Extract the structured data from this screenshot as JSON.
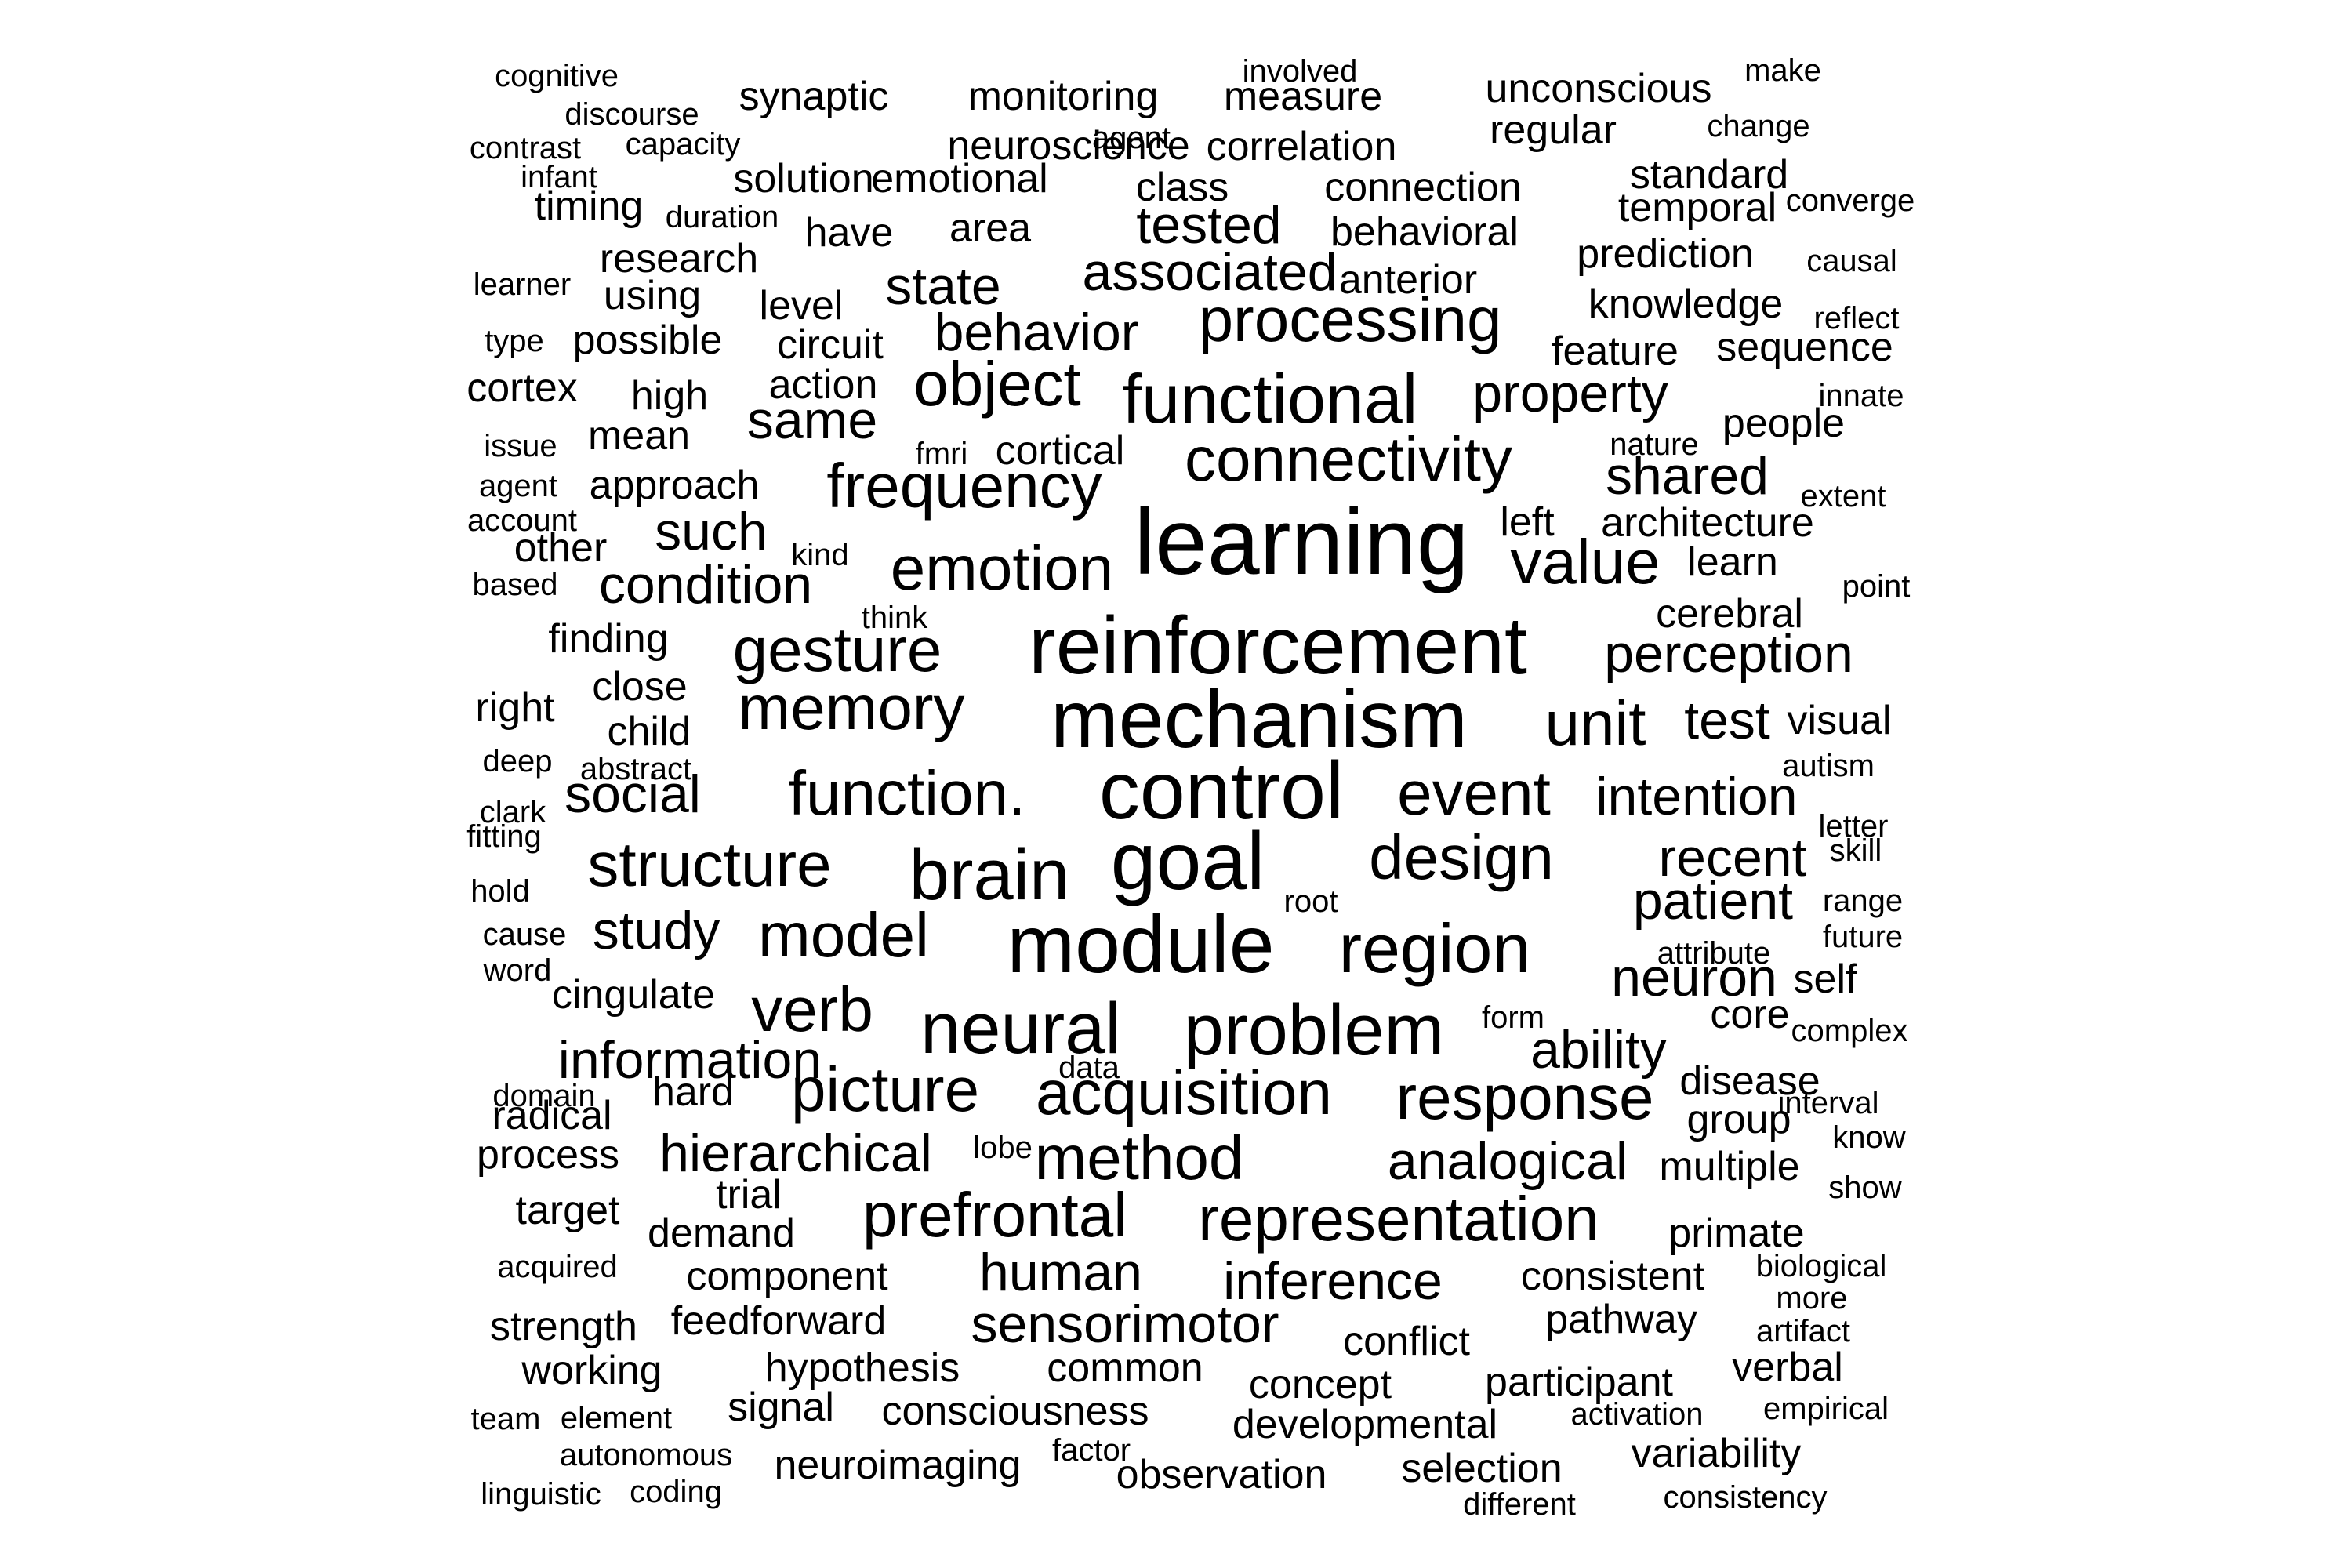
{
  "cloud": {
    "text_color": "#000000",
    "background_color": "#ffffff",
    "words": [
      "cognitive",
      "involved",
      "make",
      "discourse",
      "synaptic",
      "monitoring",
      "measure",
      "unconscious",
      "contrast",
      "capacity",
      "agent",
      "change",
      "neuroscience",
      "correlation",
      "regular",
      "infant",
      "solution",
      "emotional",
      "class",
      "connection",
      "standard",
      "timing",
      "duration",
      "temporal",
      "converge",
      "have",
      "area",
      "tested",
      "behavioral",
      "research",
      "prediction",
      "causal",
      "learner",
      "using",
      "state",
      "associated",
      "anterior",
      "level",
      "knowledge",
      "reflect",
      "type",
      "possible",
      "circuit",
      "behavior",
      "processing",
      "feature",
      "sequence",
      "cortex",
      "high",
      "action",
      "object",
      "functional",
      "property",
      "innate",
      "same",
      "issue",
      "mean",
      "fmri",
      "cortical",
      "nature",
      "people",
      "connectivity",
      "agent",
      "approach",
      "frequency",
      "shared",
      "extent",
      "account",
      "left",
      "architecture",
      "other",
      "such",
      "kind",
      "learning",
      "learn",
      "based",
      "condition",
      "emotion",
      "value",
      "point",
      "think",
      "cerebral",
      "finding",
      "gesture",
      "reinforcement",
      "perception",
      "close",
      "right",
      "memory",
      "mechanism",
      "unit",
      "test",
      "visual",
      "child",
      "deep",
      "abstract",
      "autism",
      "social",
      "function.",
      "control",
      "event",
      "intention",
      "clark",
      "letter",
      "fitting",
      "skill",
      "recent",
      "hold",
      "structure",
      "goal",
      "design",
      "brain",
      "root",
      "range",
      "patient",
      "cause",
      "study",
      "model",
      "future",
      "word",
      "attribute",
      "module",
      "region",
      "neuron",
      "self",
      "cingulate",
      "verb",
      "core",
      "form",
      "complex",
      "neural",
      "problem",
      "information",
      "ability",
      "disease",
      "domain",
      "data",
      "hard",
      "interval",
      "picture",
      "acquisition",
      "response",
      "radical",
      "group",
      "know",
      "lobe",
      "process",
      "hierarchical",
      "method",
      "analogical",
      "multiple",
      "trial",
      "target",
      "show",
      "prefrontal",
      "representation",
      "demand",
      "primate",
      "acquired",
      "component",
      "biological",
      "human",
      "inference",
      "consistent",
      "more",
      "sensorimotor",
      "strength",
      "feedforward",
      "pathway",
      "artifact",
      "conflict",
      "working",
      "hypothesis",
      "common",
      "participant",
      "verbal",
      "concept",
      "team",
      "element",
      "signal",
      "consciousness",
      "empirical",
      "activation",
      "developmental",
      "factor",
      "autonomous",
      "variability",
      "neuroimaging",
      "selection",
      "linguistic",
      "coding",
      "observation",
      "consistency",
      "different"
    ]
  }
}
